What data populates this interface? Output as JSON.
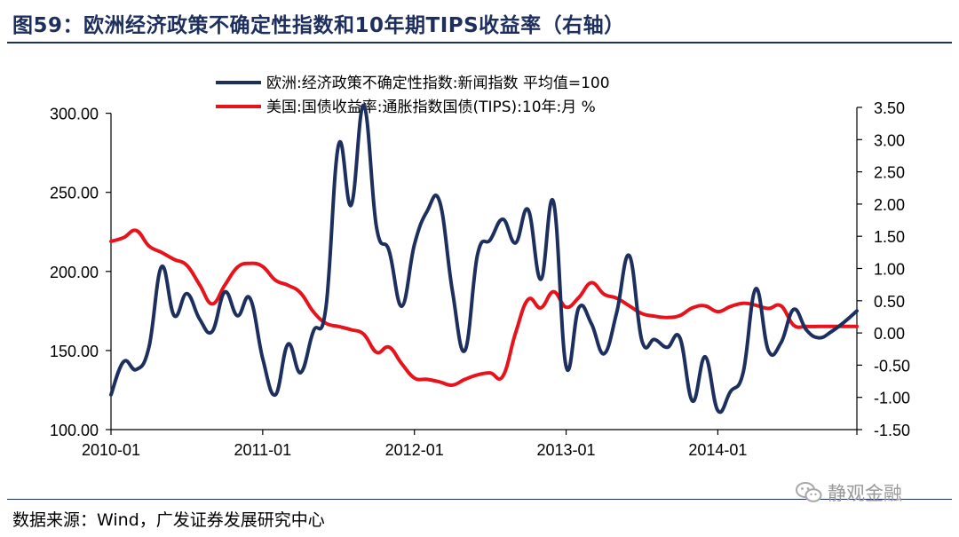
{
  "figure": {
    "title": "图59：欧洲经济政策不确定性指数和10年期TIPS收益率（右轴）",
    "source": "数据来源：Wind，广发证券发展研究中心",
    "watermark": "静观金融"
  },
  "chart_data": {
    "type": "line",
    "x_tick_labels": [
      "2010-01",
      "2011-01",
      "2012-01",
      "2013-01",
      "2014-01"
    ],
    "x_range": [
      "2010-01",
      "2014-12"
    ],
    "left_axis": {
      "ylim": [
        100,
        300
      ],
      "ticks": [
        "100.00",
        "150.00",
        "200.00",
        "250.00",
        "300.00"
      ]
    },
    "right_axis": {
      "ylim": [
        -1.5,
        3.5
      ],
      "ticks": [
        "-1.50",
        "-1.00",
        "-0.50",
        "0.00",
        "0.50",
        "1.00",
        "1.50",
        "2.00",
        "2.50",
        "3.00",
        "3.50"
      ]
    },
    "legend_position": "top",
    "grid": false,
    "series": [
      {
        "name": "欧洲:经济政策不确定性指数:新闻指数 平均值=100",
        "axis": "left",
        "color": "#1c2f5e",
        "x": [
          "2010-01",
          "2010-02",
          "2010-03",
          "2010-04",
          "2010-05",
          "2010-06",
          "2010-07",
          "2010-08",
          "2010-09",
          "2010-10",
          "2010-11",
          "2010-12",
          "2011-01",
          "2011-02",
          "2011-03",
          "2011-04",
          "2011-05",
          "2011-06",
          "2011-07",
          "2011-08",
          "2011-09",
          "2011-10",
          "2011-11",
          "2011-12",
          "2012-01",
          "2012-02",
          "2012-03",
          "2012-04",
          "2012-05",
          "2012-06",
          "2012-07",
          "2012-08",
          "2012-09",
          "2012-10",
          "2012-11",
          "2012-12",
          "2013-01",
          "2013-02",
          "2013-03",
          "2013-04",
          "2013-05",
          "2013-06",
          "2013-07",
          "2013-08",
          "2013-09",
          "2013-10",
          "2013-11",
          "2013-12",
          "2014-01",
          "2014-02",
          "2014-03",
          "2014-04",
          "2014-05",
          "2014-06",
          "2014-07",
          "2014-08",
          "2014-09",
          "2014-10",
          "2014-11",
          "2014-12"
        ],
        "values": [
          122,
          143,
          138,
          152,
          203,
          172,
          186,
          170,
          162,
          187,
          172,
          183,
          145,
          122,
          154,
          136,
          162,
          177,
          280,
          242,
          305,
          228,
          213,
          178,
          217,
          238,
          244,
          188,
          150,
          211,
          220,
          233,
          218,
          239,
          195,
          244,
          140,
          177,
          167,
          148,
          174,
          210,
          156,
          157,
          152,
          158,
          118,
          146,
          112,
          124,
          136,
          189,
          150,
          155,
          176,
          163,
          158,
          162,
          168,
          175
        ]
      },
      {
        "name": "美国:国债收益率:通胀指数国债(TIPS):10年:月 %",
        "axis": "right",
        "color": "#e8121b",
        "x": [
          "2010-01",
          "2010-02",
          "2010-03",
          "2010-04",
          "2010-05",
          "2010-06",
          "2010-07",
          "2010-08",
          "2010-09",
          "2010-10",
          "2010-11",
          "2010-12",
          "2011-01",
          "2011-02",
          "2011-03",
          "2011-04",
          "2011-05",
          "2011-06",
          "2011-07",
          "2011-08",
          "2011-09",
          "2011-10",
          "2011-11",
          "2011-12",
          "2012-01",
          "2012-02",
          "2012-03",
          "2012-04",
          "2012-05",
          "2012-06",
          "2012-07",
          "2012-08",
          "2012-09",
          "2012-10",
          "2012-11",
          "2012-12",
          "2013-01",
          "2013-02",
          "2013-03",
          "2013-04",
          "2013-05",
          "2013-06",
          "2013-07",
          "2013-08",
          "2013-09",
          "2013-10",
          "2013-11",
          "2013-12",
          "2014-01",
          "2014-02",
          "2014-03",
          "2014-04",
          "2014-05",
          "2014-06",
          "2014-07",
          "2014-08",
          "2014-09",
          "2014-10",
          "2014-11",
          "2014-12"
        ],
        "values": [
          1.42,
          1.48,
          1.59,
          1.35,
          1.25,
          1.14,
          1.05,
          0.75,
          0.45,
          0.74,
          1.02,
          1.08,
          1.03,
          0.82,
          0.74,
          0.62,
          0.33,
          0.15,
          0.1,
          0.05,
          -0.02,
          -0.3,
          -0.22,
          -0.48,
          -0.7,
          -0.72,
          -0.76,
          -0.81,
          -0.72,
          -0.65,
          -0.62,
          -0.67,
          0.0,
          0.52,
          0.39,
          0.64,
          0.4,
          0.55,
          0.78,
          0.6,
          0.54,
          0.42,
          0.3,
          0.26,
          0.24,
          0.27,
          0.39,
          0.42,
          0.33,
          0.41,
          0.46,
          0.43,
          0.38,
          0.42,
          0.12,
          0.1,
          0.1,
          0.1,
          0.1,
          0.1
        ]
      }
    ]
  }
}
